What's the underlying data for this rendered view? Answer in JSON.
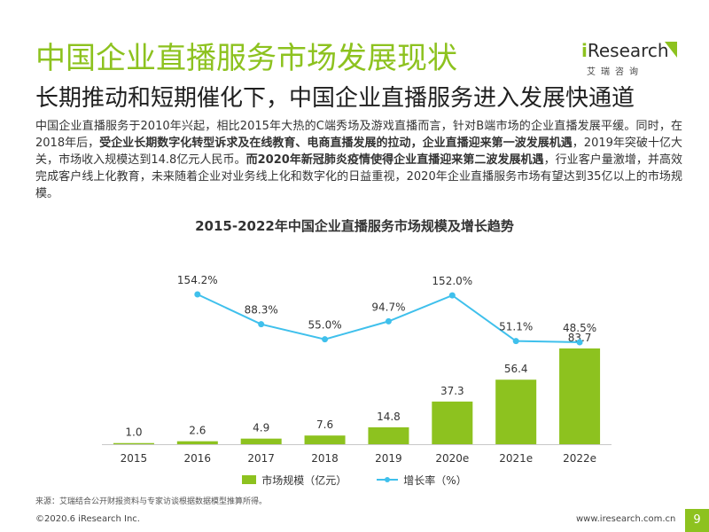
{
  "header": {
    "title": "中国企业直播服务市场发展现状",
    "subtitle": "长期推动和短期催化下，中国企业直播服务进入发展快通道"
  },
  "logo": {
    "prefix": "i",
    "word": "Research",
    "cn": "艾瑞咨询",
    "accent_color": "#8DC21F"
  },
  "body": {
    "p1": "中国企业直播服务于2010年兴起，相比2015年大热的C端秀场及游戏直播而言，针对B端市场的企业直播发展平缓。同时，在2018年后，",
    "b1": "受企业长期数字化转型诉求及在线教育、电商直播发展的拉动，企业直播迎来第一波发展机遇",
    "p2": "，2019年突破十亿大关，市场收入规模达到14.8亿元人民币。",
    "b2": "而2020年新冠肺炎疫情使得企业直播迎来第二波发展机遇",
    "p3": "，行业客户量激增，并高效完成客户线上化教育，未来随着企业对业务线上化和数字化的日益重视，2020年企业直播服务市场有望达到35亿以上的市场规模。"
  },
  "chart_data": {
    "type": "bar",
    "title": "2015-2022年中国企业直播服务市场规模及增长趋势",
    "categories": [
      "2015",
      "2016",
      "2017",
      "2018",
      "2019",
      "2020e",
      "2021e",
      "2022e"
    ],
    "series": [
      {
        "name": "市场规模（亿元）",
        "type": "bar",
        "values": [
          1.0,
          2.6,
          4.9,
          7.6,
          14.8,
          37.3,
          56.4,
          83.7
        ],
        "labels": [
          "1.0",
          "2.6",
          "4.9",
          "7.6",
          "14.8",
          "37.3",
          "56.4",
          "83.7"
        ],
        "color": "#8DC21F"
      },
      {
        "name": "增长率（%）",
        "type": "line",
        "values": [
          null,
          154.2,
          88.3,
          55.0,
          94.7,
          152.0,
          51.1,
          48.5
        ],
        "labels": [
          "",
          "154.2%",
          "88.3%",
          "55.0%",
          "94.7%",
          "152.0%",
          "51.1%",
          "48.5%"
        ],
        "color": "#3FC0EC"
      }
    ],
    "grid": false,
    "legend": "bottom-center"
  },
  "source": "来源：艾瑞结合公开财报资料与专家访谈根据数据模型推算所得。",
  "footer": {
    "copyright": "©2020.6 iResearch Inc.",
    "url": "www.iresearch.com.cn",
    "page": "9"
  }
}
